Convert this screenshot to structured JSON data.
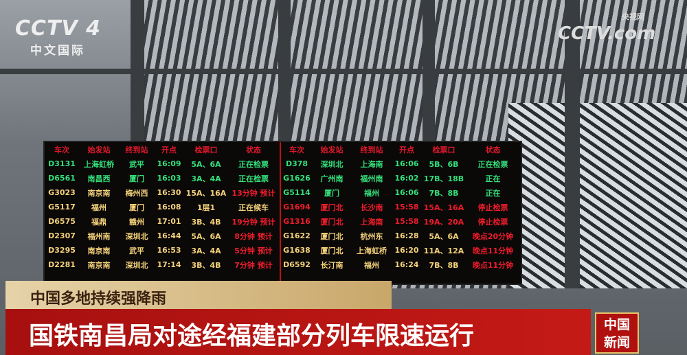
{
  "channel_logo": {
    "text": "CCTV 4",
    "subtitle": "中文国际"
  },
  "site_logo": {
    "text": "CCTV.com",
    "subtitle": "央视网"
  },
  "board": {
    "headers": [
      "车次",
      "始发站",
      "终到站",
      "开点",
      "检票口",
      "状态"
    ],
    "left": [
      {
        "c": "g",
        "v": [
          "D3131",
          "上海虹桥",
          "武平",
          "16:09",
          "5A、6A",
          "正在检票"
        ]
      },
      {
        "c": "g",
        "v": [
          "D6561",
          "南昌西",
          "厦门",
          "16:03",
          "3A、4A",
          "正在检票"
        ]
      },
      {
        "c": "y",
        "v": [
          "G3023",
          "南京南",
          "梅州西",
          "16:30",
          "15A、16A",
          "13分钟 预计"
        ],
        "sr": true
      },
      {
        "c": "y",
        "v": [
          "G5117",
          "福州",
          "厦门",
          "16:08",
          "1层1",
          "正在候车"
        ]
      },
      {
        "c": "y",
        "v": [
          "D6575",
          "福鼎",
          "赣州",
          "17:01",
          "3B、4B",
          "19分钟 预计"
        ],
        "sr": true
      },
      {
        "c": "y",
        "v": [
          "D2307",
          "福州南",
          "深圳北",
          "16:44",
          "5A、6A",
          "8分钟 预计"
        ],
        "sr": true
      },
      {
        "c": "y",
        "v": [
          "D3295",
          "南京南",
          "武平",
          "16:53",
          "3A、4A",
          "5分钟 预计"
        ],
        "sr": true
      },
      {
        "c": "y",
        "v": [
          "D2281",
          "南京南",
          "深圳北",
          "17:14",
          "3B、4B",
          "7分钟 预计"
        ],
        "sr": true
      }
    ],
    "right": [
      {
        "c": "g",
        "v": [
          "D378",
          "深圳北",
          "上海南",
          "16:06",
          "5B、6B",
          "正在检票"
        ]
      },
      {
        "c": "g",
        "v": [
          "G1626",
          "广州南",
          "福州南",
          "16:02",
          "17B、18B",
          "正在"
        ]
      },
      {
        "c": "g",
        "v": [
          "G5114",
          "厦门",
          "福州",
          "16:06",
          "7B、8B",
          "正在"
        ]
      },
      {
        "c": "rd",
        "v": [
          "G1694",
          "厦门北",
          "长沙南",
          "15:58",
          "15A、16A",
          "停止检票"
        ]
      },
      {
        "c": "rd",
        "v": [
          "G1316",
          "厦门北",
          "上海南",
          "15:58",
          "19A、20A",
          "停止检票"
        ]
      },
      {
        "c": "y",
        "v": [
          "G1622",
          "厦门北",
          "杭州东",
          "16:28",
          "5A、6A",
          "晚点20分钟"
        ],
        "sr": true
      },
      {
        "c": "y",
        "v": [
          "G1638",
          "厦门北",
          "上海虹桥",
          "16:20",
          "11A、12A",
          "晚点11分钟"
        ],
        "sr": true
      },
      {
        "c": "y",
        "v": [
          "D6592",
          "长汀南",
          "福州",
          "16:24",
          "7B、8B",
          "晚点11分钟"
        ],
        "sr": true
      }
    ]
  },
  "caption": {
    "subtitle": "中国多地持续强降雨",
    "headline": "国铁南昌局对途经福建部分列车限速运行",
    "badge": [
      "中国",
      "新闻"
    ]
  }
}
